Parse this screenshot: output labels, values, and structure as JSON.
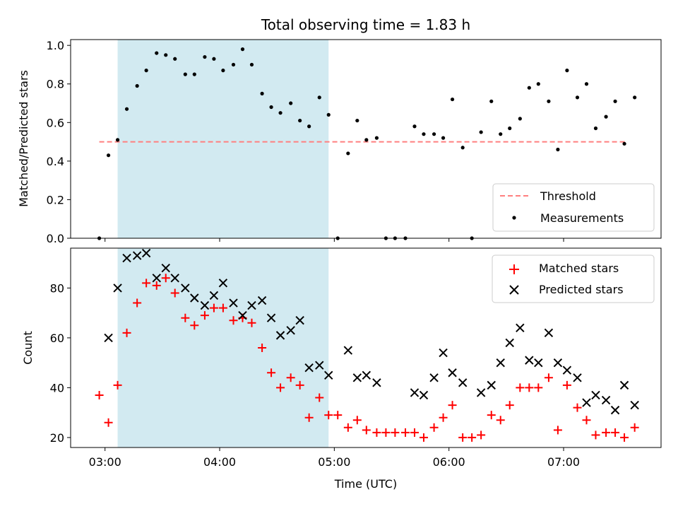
{
  "chart_data": {
    "type": "scatter",
    "title": "Total observing time = 1.83 h",
    "xlabel": "Time (UTC)",
    "x_tick_labels": [
      "03:00",
      "04:00",
      "05:00",
      "06:00",
      "07:00"
    ],
    "x_ticks_hours": [
      3,
      4,
      5,
      6,
      7
    ],
    "xlim_hours": [
      2.7,
      7.85
    ],
    "shaded_interval_hours": [
      3.11,
      4.95
    ],
    "shaded_color": "#add8e6",
    "top_panel": {
      "ylabel": "Matched/Predicted stars",
      "ylim": [
        0,
        1.03
      ],
      "y_ticks": [
        0.0,
        0.2,
        0.4,
        0.6,
        0.8,
        1.0
      ],
      "y_tick_labels": [
        "0.0",
        "0.2",
        "0.4",
        "0.6",
        "0.8",
        "1.0"
      ],
      "threshold": {
        "name": "Threshold",
        "value": 0.5,
        "x_start": 2.95,
        "x_end": 7.55,
        "color": "#ff7f7f"
      },
      "measurements": {
        "name": "Measurements",
        "color": "#000000",
        "x": [
          2.95,
          3.03,
          3.11,
          3.19,
          3.28,
          3.36,
          3.45,
          3.53,
          3.61,
          3.7,
          3.78,
          3.87,
          3.95,
          4.03,
          4.12,
          4.2,
          4.28,
          4.37,
          4.45,
          4.53,
          4.62,
          4.7,
          4.78,
          4.87,
          4.95,
          5.03,
          5.12,
          5.2,
          5.28,
          5.37,
          5.45,
          5.53,
          5.62,
          5.7,
          5.78,
          5.87,
          5.95,
          6.03,
          6.12,
          6.2,
          6.28,
          6.37,
          6.45,
          6.53,
          6.62,
          6.7,
          6.78,
          6.87,
          6.95,
          7.03,
          7.12,
          7.2,
          7.28,
          7.37,
          7.45,
          7.53,
          7.62
        ],
        "y": [
          0.0,
          0.43,
          0.51,
          0.67,
          0.79,
          0.87,
          0.96,
          0.95,
          0.93,
          0.85,
          0.85,
          0.94,
          0.93,
          0.87,
          0.9,
          0.98,
          0.9,
          0.75,
          0.68,
          0.65,
          0.7,
          0.61,
          0.58,
          0.73,
          0.64,
          0.0,
          0.44,
          0.61,
          0.51,
          0.52,
          0.0,
          0.0,
          0.0,
          0.58,
          0.54,
          0.54,
          0.52,
          0.72,
          0.47,
          0.0,
          0.55,
          0.71,
          0.54,
          0.57,
          0.62,
          0.78,
          0.8,
          0.71,
          0.46,
          0.87,
          0.73,
          0.8,
          0.57,
          0.63,
          0.71,
          0.49,
          0.73
        ]
      },
      "legend": {
        "placement": "lower right",
        "entries": [
          "Threshold",
          "Measurements"
        ]
      }
    },
    "bottom_panel": {
      "ylabel": "Count",
      "ylim": [
        16,
        96
      ],
      "y_ticks": [
        20,
        40,
        60,
        80
      ],
      "y_tick_labels": [
        "20",
        "40",
        "60",
        "80"
      ],
      "series": [
        {
          "name": "Matched stars",
          "marker": "plus",
          "color": "#ff0000",
          "x": [
            2.95,
            3.03,
            3.11,
            3.19,
            3.28,
            3.36,
            3.45,
            3.53,
            3.61,
            3.7,
            3.78,
            3.87,
            3.95,
            4.03,
            4.12,
            4.2,
            4.28,
            4.37,
            4.45,
            4.53,
            4.62,
            4.7,
            4.78,
            4.87,
            4.95,
            5.03,
            5.12,
            5.2,
            5.28,
            5.37,
            5.45,
            5.53,
            5.62,
            5.7,
            5.78,
            5.87,
            5.95,
            6.03,
            6.12,
            6.2,
            6.28,
            6.37,
            6.45,
            6.53,
            6.62,
            6.7,
            6.78,
            6.87,
            6.95,
            7.03,
            7.12,
            7.2,
            7.28,
            7.37,
            7.45,
            7.53,
            7.62
          ],
          "y": [
            37,
            26,
            41,
            62,
            74,
            82,
            81,
            84,
            78,
            68,
            65,
            69,
            72,
            72,
            67,
            68,
            66,
            56,
            46,
            40,
            44,
            41,
            28,
            36,
            29,
            29,
            24,
            27,
            23,
            22,
            22,
            22,
            22,
            22,
            20,
            24,
            28,
            33,
            20,
            20,
            21,
            29,
            27,
            33,
            40,
            40,
            40,
            44,
            23,
            41,
            32,
            27,
            21,
            22,
            22,
            20,
            24
          ]
        },
        {
          "name": "Predicted stars",
          "marker": "x",
          "color": "#000000",
          "x": [
            3.03,
            3.11,
            3.19,
            3.28,
            3.36,
            3.45,
            3.53,
            3.61,
            3.7,
            3.78,
            3.87,
            3.95,
            4.03,
            4.12,
            4.2,
            4.28,
            4.37,
            4.45,
            4.53,
            4.62,
            4.7,
            4.78,
            4.87,
            4.95,
            5.12,
            5.2,
            5.28,
            5.37,
            5.7,
            5.78,
            5.87,
            5.95,
            6.03,
            6.12,
            6.28,
            6.37,
            6.45,
            6.53,
            6.62,
            6.7,
            6.78,
            6.87,
            6.95,
            7.03,
            7.12,
            7.2,
            7.28,
            7.37,
            7.45,
            7.53,
            7.62
          ],
          "y": [
            60,
            80,
            92,
            93,
            94,
            84,
            88,
            84,
            80,
            76,
            73,
            77,
            82,
            74,
            69,
            73,
            75,
            68,
            61,
            63,
            67,
            48,
            49,
            45,
            55,
            44,
            45,
            42,
            38,
            37,
            44,
            54,
            46,
            42,
            38,
            41,
            50,
            58,
            64,
            51,
            50,
            62,
            50,
            47,
            44,
            34,
            37,
            35,
            31,
            41,
            33
          ]
        }
      ],
      "legend": {
        "placement": "upper right",
        "entries": [
          "Matched stars",
          "Predicted stars"
        ]
      }
    }
  }
}
